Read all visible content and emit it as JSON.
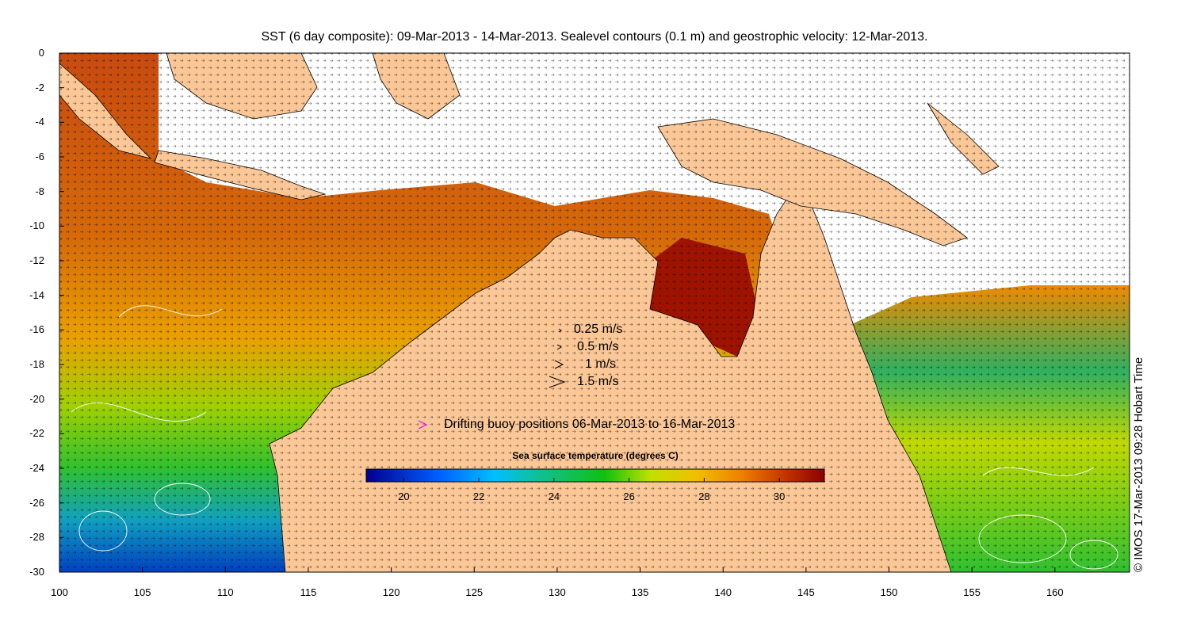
{
  "title": "SST (6 day composite): 09-Mar-2013 - 14-Mar-2013. Sealevel contours (0.1 m) and geostrophic velocity: 12-Mar-2013.",
  "side_label": "© IMOS 17-Mar-2013 09:28 Hobart Time",
  "x_axis": {
    "ticks": [
      "100",
      "105",
      "110",
      "115",
      "120",
      "125",
      "130",
      "135",
      "140",
      "145",
      "150",
      "155",
      "160"
    ],
    "range": [
      100,
      164.5
    ]
  },
  "y_axis": {
    "ticks": [
      "0",
      "-2",
      "-4",
      "-6",
      "-8",
      "-10",
      "-12",
      "-14",
      "-16",
      "-18",
      "-20",
      "-22",
      "-24",
      "-26",
      "-28",
      "-30"
    ],
    "range": [
      -30,
      0
    ]
  },
  "velocity_legend": [
    "0.25 m/s",
    "0.5 m/s",
    "1 m/s",
    "1.5 m/s"
  ],
  "buoy_legend": "Drifting buoy positions 06-Mar-2013 to 16-Mar-2013",
  "colorbar": {
    "title": "Sea surface temperature (degrees C)",
    "ticks": [
      "20",
      "22",
      "24",
      "26",
      "28",
      "30"
    ],
    "range": [
      19,
      31.2
    ]
  },
  "colors": {
    "land": "#fbc797",
    "cloud": "#ffffff",
    "buoy": "#ff00ff"
  }
}
